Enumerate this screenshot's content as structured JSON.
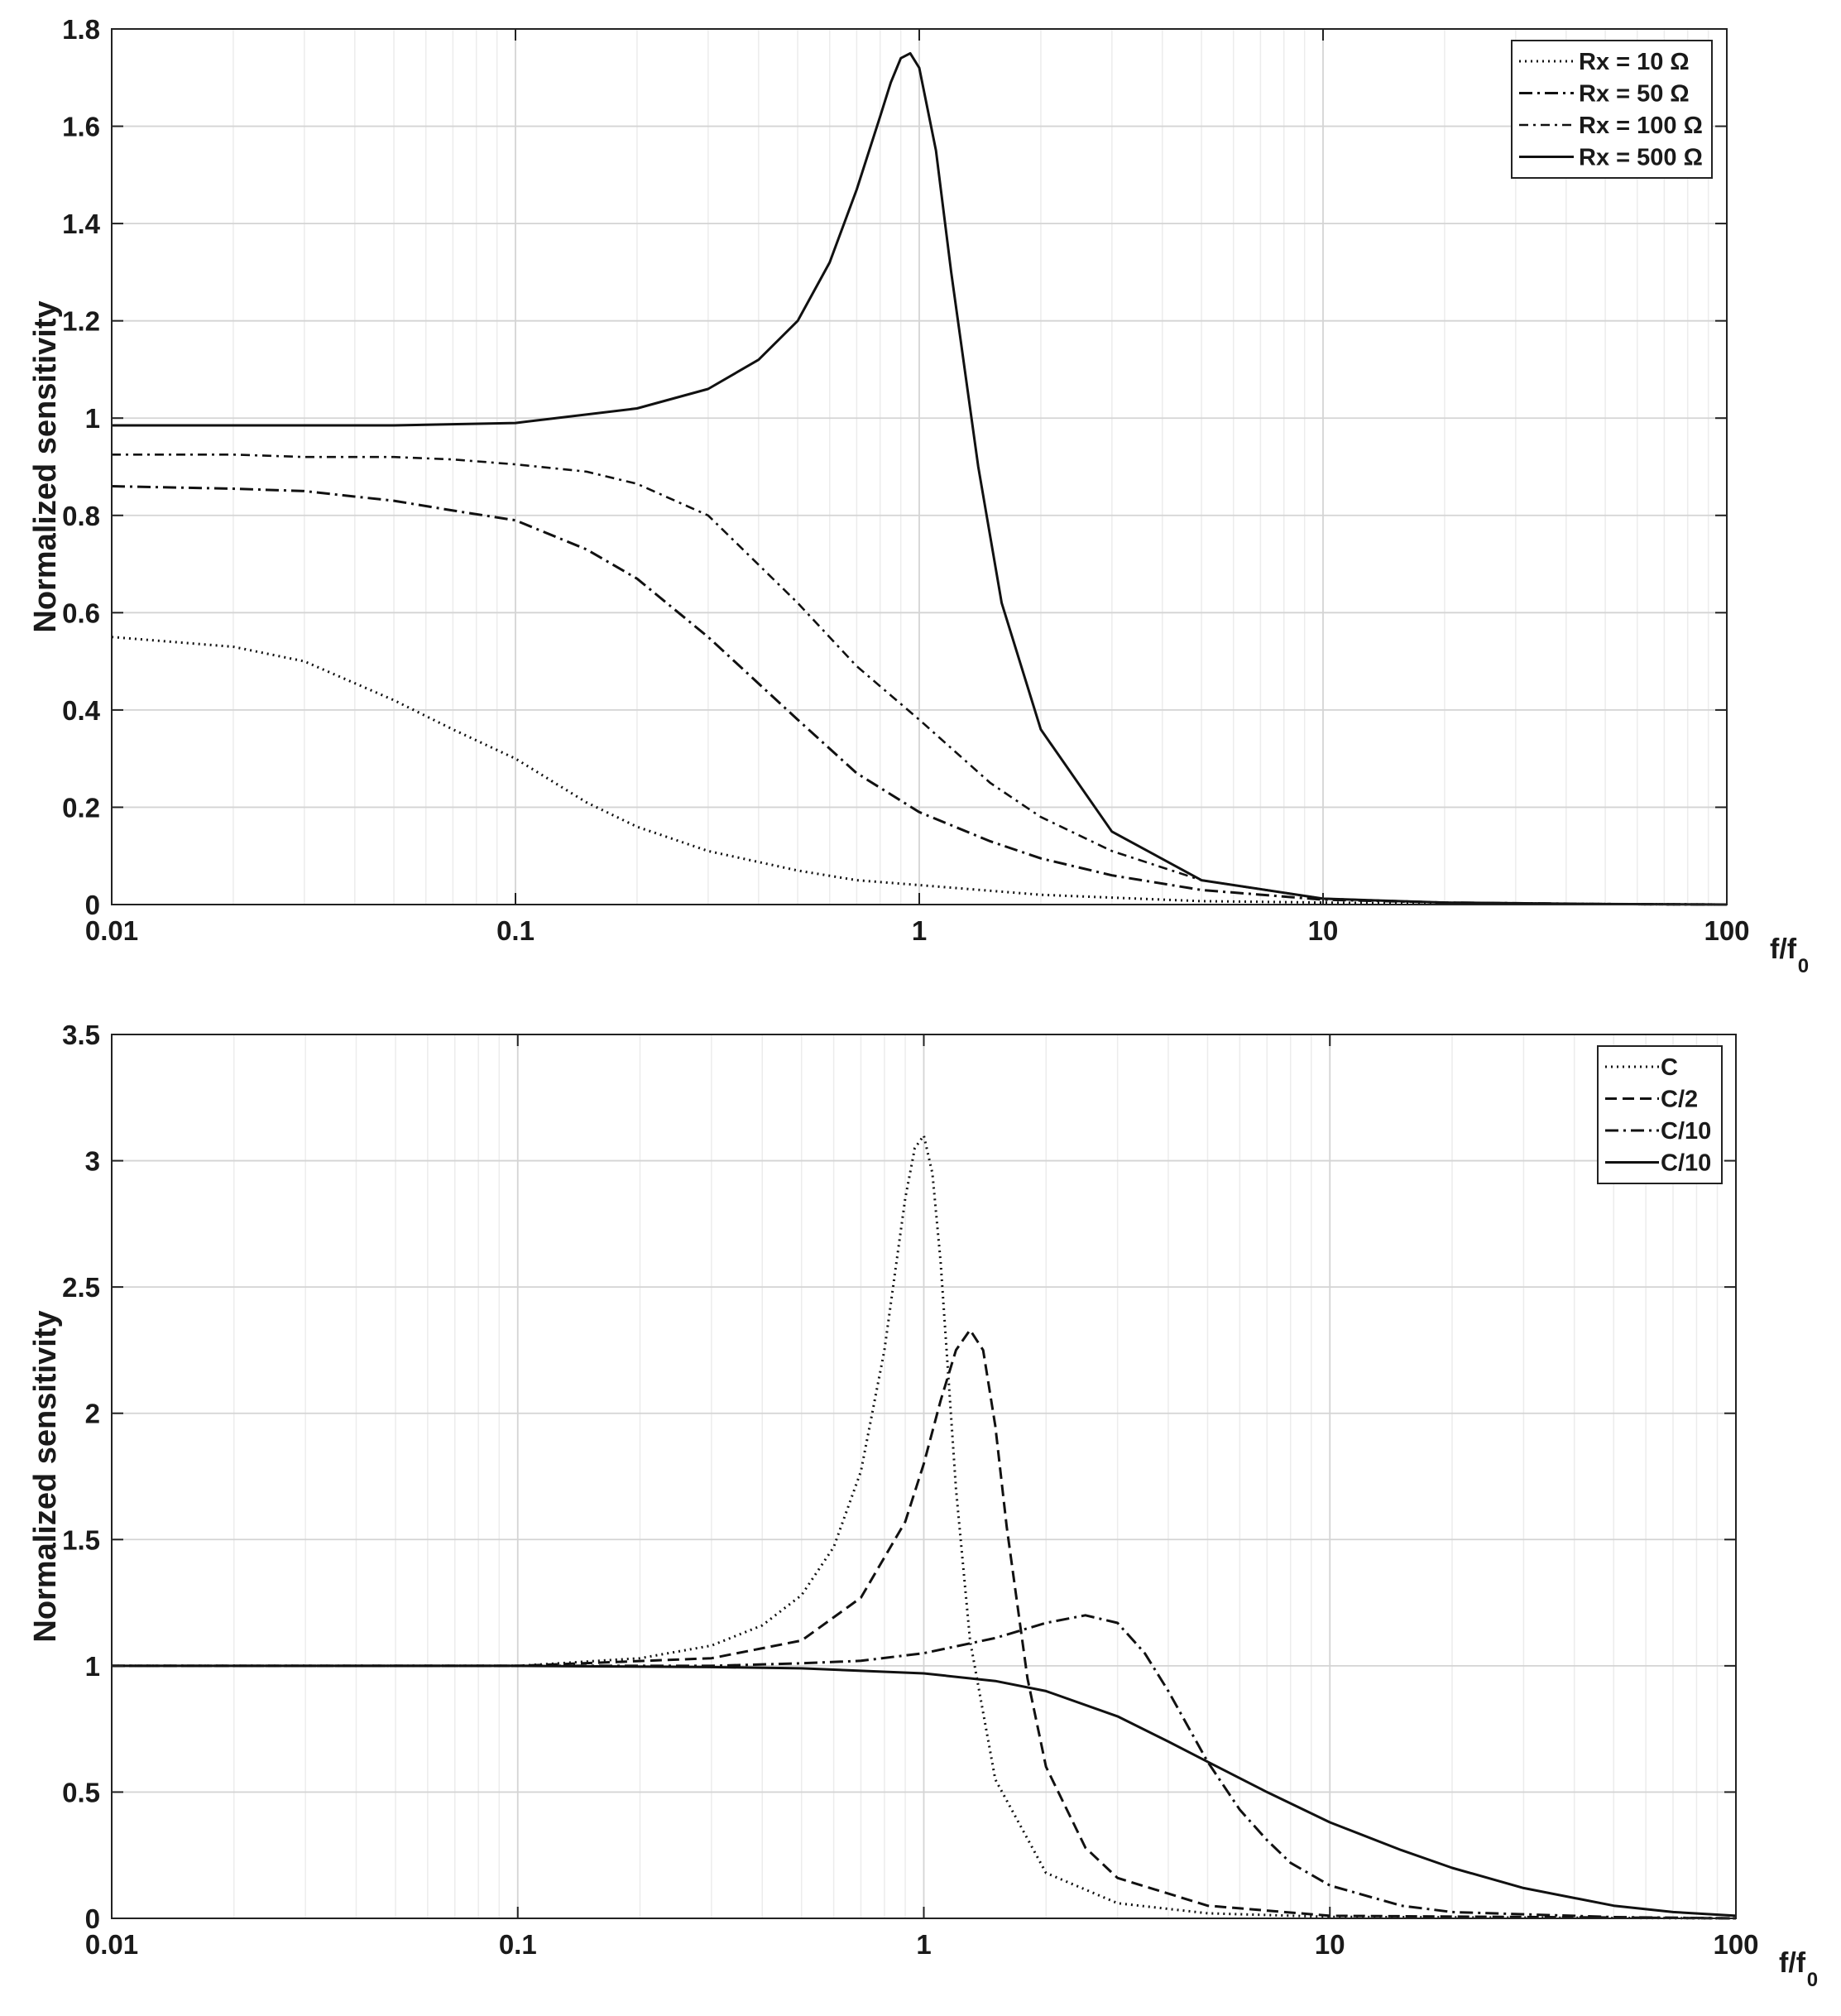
{
  "chart_data": [
    {
      "type": "line",
      "xscale": "log",
      "xlim": [
        0.01,
        100
      ],
      "ylim": [
        0,
        1.8
      ],
      "xticks": [
        0.01,
        0.1,
        1,
        10,
        100
      ],
      "xtick_labels": [
        "0.01",
        "0.1",
        "1",
        "10",
        "100"
      ],
      "yticks": [
        0,
        0.2,
        0.4,
        0.6,
        0.8,
        1,
        1.2,
        1.4,
        1.6,
        1.8
      ],
      "ytick_labels": [
        "0",
        "0.2",
        "0.4",
        "0.6",
        "0.8",
        "1",
        "1.2",
        "1.4",
        "1.6",
        "1.8"
      ],
      "xlabel": "f/f",
      "xlabel_subscript": "0",
      "ylabel": "Normalized sensitivity",
      "grid": true,
      "legend_position": "top-right",
      "series": [
        {
          "name": "Rx = 10 Ω",
          "style": "dotted",
          "x": [
            0.01,
            0.02,
            0.03,
            0.05,
            0.07,
            0.1,
            0.15,
            0.2,
            0.3,
            0.5,
            0.7,
            1,
            2,
            5,
            10,
            20,
            50,
            100
          ],
          "y": [
            0.55,
            0.53,
            0.5,
            0.42,
            0.36,
            0.3,
            0.21,
            0.16,
            0.11,
            0.07,
            0.05,
            0.04,
            0.02,
            0.007,
            0.004,
            0.002,
            0.001,
            0.0
          ]
        },
        {
          "name": "Rx = 50 Ω",
          "style": "dashdot",
          "x": [
            0.01,
            0.02,
            0.03,
            0.05,
            0.07,
            0.1,
            0.15,
            0.2,
            0.3,
            0.5,
            0.7,
            1,
            1.5,
            2,
            3,
            5,
            10,
            20,
            50,
            100
          ],
          "y": [
            0.86,
            0.855,
            0.85,
            0.83,
            0.81,
            0.79,
            0.73,
            0.67,
            0.55,
            0.38,
            0.27,
            0.19,
            0.13,
            0.095,
            0.06,
            0.03,
            0.01,
            0.004,
            0.001,
            0.0
          ]
        },
        {
          "name": "Rx = 100 Ω",
          "style": "dashdot-light",
          "x": [
            0.01,
            0.02,
            0.03,
            0.05,
            0.07,
            0.1,
            0.15,
            0.2,
            0.3,
            0.5,
            0.7,
            1,
            1.5,
            2,
            3,
            5,
            10,
            20,
            50,
            100
          ],
          "y": [
            0.925,
            0.925,
            0.92,
            0.92,
            0.915,
            0.905,
            0.89,
            0.865,
            0.8,
            0.62,
            0.49,
            0.38,
            0.25,
            0.18,
            0.11,
            0.05,
            0.012,
            0.004,
            0.001,
            0.0
          ]
        },
        {
          "name": "Rx = 500 Ω",
          "style": "solid",
          "x": [
            0.01,
            0.02,
            0.05,
            0.1,
            0.2,
            0.3,
            0.4,
            0.5,
            0.6,
            0.7,
            0.8,
            0.85,
            0.9,
            0.95,
            1.0,
            1.1,
            1.2,
            1.4,
            1.6,
            2,
            3,
            5,
            10,
            20,
            50,
            100
          ],
          "y": [
            0.985,
            0.985,
            0.985,
            0.99,
            1.02,
            1.06,
            1.12,
            1.2,
            1.32,
            1.47,
            1.62,
            1.69,
            1.74,
            1.75,
            1.72,
            1.55,
            1.3,
            0.9,
            0.62,
            0.36,
            0.15,
            0.05,
            0.012,
            0.004,
            0.001,
            0.0
          ]
        }
      ]
    },
    {
      "type": "line",
      "xscale": "log",
      "xlim": [
        0.01,
        100
      ],
      "ylim": [
        0,
        3.5
      ],
      "xticks": [
        0.01,
        0.1,
        1,
        10,
        100
      ],
      "xtick_labels": [
        "0.01",
        "0.1",
        "1",
        "10",
        "100"
      ],
      "yticks": [
        0,
        0.5,
        1,
        1.5,
        2,
        2.5,
        3,
        3.5
      ],
      "ytick_labels": [
        "0",
        "0.5",
        "1",
        "1.5",
        "2",
        "2.5",
        "3",
        "3.5"
      ],
      "xlabel": "f/f",
      "xlabel_subscript": "0",
      "ylabel": "Normalized sensitivity",
      "grid": true,
      "legend_position": "top-right",
      "series": [
        {
          "name": "C",
          "style": "dotted",
          "x": [
            0.01,
            0.1,
            0.2,
            0.3,
            0.4,
            0.5,
            0.6,
            0.7,
            0.8,
            0.9,
            0.95,
            1.0,
            1.05,
            1.1,
            1.2,
            1.3,
            1.5,
            2,
            3,
            5,
            10,
            100
          ],
          "y": [
            1.0,
            1.0,
            1.03,
            1.08,
            1.16,
            1.28,
            1.47,
            1.77,
            2.25,
            2.85,
            3.05,
            3.1,
            2.95,
            2.6,
            1.7,
            1.1,
            0.55,
            0.18,
            0.06,
            0.02,
            0.006,
            0.0
          ]
        },
        {
          "name": "C/2",
          "style": "dashed",
          "x": [
            0.01,
            0.1,
            0.3,
            0.5,
            0.7,
            0.9,
            1.0,
            1.1,
            1.2,
            1.3,
            1.4,
            1.5,
            1.6,
            1.8,
            2,
            2.5,
            3,
            5,
            10,
            100
          ],
          "y": [
            1.0,
            1.0,
            1.03,
            1.1,
            1.27,
            1.57,
            1.8,
            2.05,
            2.25,
            2.33,
            2.25,
            1.95,
            1.55,
            0.95,
            0.6,
            0.28,
            0.16,
            0.05,
            0.01,
            0.0
          ]
        },
        {
          "name": "C/10",
          "style": "dashdot",
          "x": [
            0.01,
            0.1,
            0.3,
            0.5,
            0.7,
            1.0,
            1.5,
            2.0,
            2.5,
            3.0,
            3.5,
            4,
            5,
            6,
            7,
            8,
            10,
            15,
            20,
            50,
            100
          ],
          "y": [
            1.0,
            1.0,
            1.0,
            1.01,
            1.02,
            1.05,
            1.11,
            1.17,
            1.2,
            1.17,
            1.05,
            0.9,
            0.62,
            0.43,
            0.31,
            0.22,
            0.13,
            0.05,
            0.025,
            0.005,
            0.0
          ]
        },
        {
          "name": "C/10",
          "style": "solid",
          "x": [
            0.01,
            0.1,
            0.3,
            0.5,
            1.0,
            1.5,
            2,
            3,
            4,
            5,
            7,
            10,
            15,
            20,
            30,
            50,
            70,
            100
          ],
          "y": [
            1.0,
            1.0,
            0.995,
            0.99,
            0.97,
            0.94,
            0.9,
            0.8,
            0.7,
            0.62,
            0.5,
            0.38,
            0.27,
            0.2,
            0.12,
            0.05,
            0.025,
            0.01
          ]
        }
      ]
    }
  ]
}
